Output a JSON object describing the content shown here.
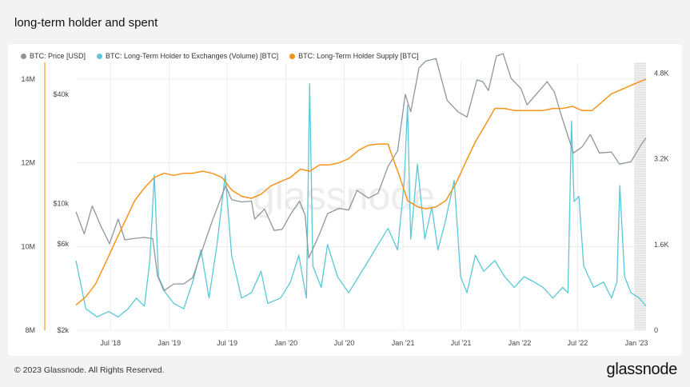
{
  "title": "long-term holder and spent",
  "footer": "© 2023 Glassnode. All Rights Reserved.",
  "brand": "glassnode",
  "watermark": "glassnode",
  "chart_data": {
    "type": "line",
    "title": "long-term holder and spent",
    "x_axis": {
      "type": "date",
      "range": [
        "2018-03-15",
        "2023-01-31"
      ],
      "tick_labels": [
        "Jul '18",
        "Jan '19",
        "Jul '19",
        "Jan '20",
        "Jul '20",
        "Jan '21",
        "Jul '21",
        "Jan '22",
        "Jul '22",
        "Jan '23"
      ],
      "tick_dates": [
        "2018-07-01",
        "2019-01-01",
        "2019-07-01",
        "2020-01-01",
        "2020-07-01",
        "2021-01-01",
        "2021-07-01",
        "2022-01-01",
        "2022-07-01",
        "2023-01-01"
      ]
    },
    "axes": {
      "supply": {
        "side": "left-outer",
        "scale": "linear",
        "range": [
          8000000,
          14400000
        ],
        "ticks": [
          8000000,
          10000000,
          12000000,
          14000000
        ],
        "tick_labels": [
          "8M",
          "10M",
          "12M",
          "14M"
        ]
      },
      "price": {
        "side": "left-inner",
        "scale": "log",
        "range": [
          2000,
          60000
        ],
        "ticks": [
          2000,
          6000,
          10000,
          40000
        ],
        "tick_labels": [
          "$2k",
          "$6k",
          "$10k",
          "$40k"
        ]
      },
      "volume": {
        "side": "right",
        "scale": "linear",
        "range": [
          0,
          5000
        ],
        "ticks": [
          0,
          1600,
          3200,
          4800
        ],
        "tick_labels": [
          "0",
          "1.6K",
          "3.2K",
          "4.8K"
        ]
      }
    },
    "legend_position": "top-left",
    "grid": true,
    "series": [
      {
        "name": "BTC: Price [USD]",
        "color": "#8f969b",
        "axis": "price",
        "points": [
          [
            "2018-03-15",
            9000
          ],
          [
            "2018-04-10",
            6800
          ],
          [
            "2018-05-05",
            9700
          ],
          [
            "2018-06-01",
            7500
          ],
          [
            "2018-06-28",
            6000
          ],
          [
            "2018-07-25",
            8200
          ],
          [
            "2018-08-15",
            6300
          ],
          [
            "2018-09-10",
            6400
          ],
          [
            "2018-10-15",
            6500
          ],
          [
            "2018-11-10",
            6400
          ],
          [
            "2018-11-25",
            4000
          ],
          [
            "2018-12-15",
            3300
          ],
          [
            "2019-01-15",
            3600
          ],
          [
            "2019-02-15",
            3600
          ],
          [
            "2019-03-15",
            3900
          ],
          [
            "2019-04-05",
            5000
          ],
          [
            "2019-05-15",
            8000
          ],
          [
            "2019-06-26",
            12500
          ],
          [
            "2019-07-15",
            10500
          ],
          [
            "2019-08-15",
            10200
          ],
          [
            "2019-09-15",
            10300
          ],
          [
            "2019-09-25",
            8200
          ],
          [
            "2019-10-26",
            9300
          ],
          [
            "2019-11-25",
            7100
          ],
          [
            "2019-12-20",
            7200
          ],
          [
            "2020-01-15",
            8700
          ],
          [
            "2020-02-12",
            10300
          ],
          [
            "2020-03-01",
            8600
          ],
          [
            "2020-03-12",
            5000
          ],
          [
            "2020-04-15",
            6800
          ],
          [
            "2020-05-10",
            8800
          ],
          [
            "2020-06-15",
            9400
          ],
          [
            "2020-07-15",
            9200
          ],
          [
            "2020-08-10",
            11800
          ],
          [
            "2020-09-15",
            10700
          ],
          [
            "2020-10-15",
            11400
          ],
          [
            "2020-11-15",
            16000
          ],
          [
            "2020-12-15",
            19500
          ],
          [
            "2021-01-08",
            40000
          ],
          [
            "2021-01-25",
            32000
          ],
          [
            "2021-02-20",
            56000
          ],
          [
            "2021-03-13",
            61000
          ],
          [
            "2021-04-14",
            63000
          ],
          [
            "2021-05-19",
            37000
          ],
          [
            "2021-06-22",
            32000
          ],
          [
            "2021-07-20",
            30000
          ],
          [
            "2021-08-20",
            48000
          ],
          [
            "2021-09-07",
            47000
          ],
          [
            "2021-09-25",
            42000
          ],
          [
            "2021-10-20",
            65000
          ],
          [
            "2021-11-10",
            67000
          ],
          [
            "2021-12-05",
            49000
          ],
          [
            "2022-01-05",
            43000
          ],
          [
            "2022-01-24",
            35000
          ],
          [
            "2022-03-28",
            47000
          ],
          [
            "2022-04-20",
            41000
          ],
          [
            "2022-05-10",
            31000
          ],
          [
            "2022-06-18",
            19000
          ],
          [
            "2022-07-15",
            20500
          ],
          [
            "2022-08-10",
            24000
          ],
          [
            "2022-09-07",
            19000
          ],
          [
            "2022-10-15",
            19200
          ],
          [
            "2022-11-09",
            16500
          ],
          [
            "2022-12-15",
            17000
          ],
          [
            "2023-01-15",
            21000
          ],
          [
            "2023-01-31",
            23000
          ]
        ]
      },
      {
        "name": "BTC: Long-Term Holder to Exchanges (Volume) [BTC]",
        "color": "#5ac8d6",
        "axis": "volume",
        "points": [
          [
            "2018-03-15",
            1300
          ],
          [
            "2018-04-15",
            400
          ],
          [
            "2018-05-20",
            250
          ],
          [
            "2018-06-25",
            350
          ],
          [
            "2018-07-25",
            250
          ],
          [
            "2018-08-25",
            400
          ],
          [
            "2018-09-20",
            600
          ],
          [
            "2018-10-15",
            450
          ],
          [
            "2018-11-01",
            1300
          ],
          [
            "2018-11-15",
            2900
          ],
          [
            "2018-11-28",
            1000
          ],
          [
            "2018-12-20",
            700
          ],
          [
            "2019-01-15",
            500
          ],
          [
            "2019-02-15",
            400
          ],
          [
            "2019-03-15",
            900
          ],
          [
            "2019-04-10",
            1500
          ],
          [
            "2019-05-05",
            600
          ],
          [
            "2019-05-30",
            1600
          ],
          [
            "2019-06-25",
            2900
          ],
          [
            "2019-07-15",
            1400
          ],
          [
            "2019-08-15",
            600
          ],
          [
            "2019-09-15",
            700
          ],
          [
            "2019-10-15",
            1100
          ],
          [
            "2019-11-05",
            500
          ],
          [
            "2019-12-15",
            600
          ],
          [
            "2020-01-15",
            900
          ],
          [
            "2020-02-10",
            1400
          ],
          [
            "2020-03-05",
            600
          ],
          [
            "2020-03-15",
            4600
          ],
          [
            "2020-03-25",
            1200
          ],
          [
            "2020-04-20",
            800
          ],
          [
            "2020-05-10",
            1600
          ],
          [
            "2020-06-10",
            1000
          ],
          [
            "2020-07-15",
            700
          ],
          [
            "2020-08-15",
            1000
          ],
          [
            "2020-09-15",
            1300
          ],
          [
            "2020-10-15",
            1600
          ],
          [
            "2020-11-15",
            1900
          ],
          [
            "2020-12-15",
            1500
          ],
          [
            "2021-01-05",
            2800
          ],
          [
            "2021-01-15",
            4200
          ],
          [
            "2021-01-25",
            1700
          ],
          [
            "2021-02-15",
            3100
          ],
          [
            "2021-03-10",
            1700
          ],
          [
            "2021-04-01",
            2300
          ],
          [
            "2021-04-20",
            1500
          ],
          [
            "2021-05-12",
            2000
          ],
          [
            "2021-06-10",
            2800
          ],
          [
            "2021-06-30",
            1000
          ],
          [
            "2021-07-20",
            700
          ],
          [
            "2021-08-15",
            1400
          ],
          [
            "2021-09-10",
            1100
          ],
          [
            "2021-10-15",
            1300
          ],
          [
            "2021-11-15",
            1000
          ],
          [
            "2021-12-15",
            800
          ],
          [
            "2022-01-15",
            1000
          ],
          [
            "2022-02-15",
            900
          ],
          [
            "2022-03-15",
            800
          ],
          [
            "2022-04-15",
            600
          ],
          [
            "2022-05-15",
            800
          ],
          [
            "2022-06-01",
            700
          ],
          [
            "2022-06-12",
            3900
          ],
          [
            "2022-06-20",
            2400
          ],
          [
            "2022-07-05",
            2500
          ],
          [
            "2022-07-20",
            1200
          ],
          [
            "2022-08-20",
            800
          ],
          [
            "2022-09-20",
            900
          ],
          [
            "2022-10-15",
            600
          ],
          [
            "2022-11-01",
            900
          ],
          [
            "2022-11-10",
            2700
          ],
          [
            "2022-11-25",
            1000
          ],
          [
            "2022-12-15",
            700
          ],
          [
            "2023-01-10",
            600
          ],
          [
            "2023-01-31",
            450
          ]
        ]
      },
      {
        "name": "BTC: Long-Term Holder Supply [BTC]",
        "color": "#f7931a",
        "axis": "supply",
        "points": [
          [
            "2018-03-15",
            8600000
          ],
          [
            "2018-04-15",
            8800000
          ],
          [
            "2018-05-15",
            9100000
          ],
          [
            "2018-06-15",
            9600000
          ],
          [
            "2018-07-15",
            10100000
          ],
          [
            "2018-08-15",
            10600000
          ],
          [
            "2018-09-15",
            11100000
          ],
          [
            "2018-10-15",
            11400000
          ],
          [
            "2018-11-15",
            11650000
          ],
          [
            "2018-12-15",
            11750000
          ],
          [
            "2019-01-15",
            11700000
          ],
          [
            "2019-02-15",
            11750000
          ],
          [
            "2019-03-15",
            11750000
          ],
          [
            "2019-04-15",
            11800000
          ],
          [
            "2019-05-15",
            11750000
          ],
          [
            "2019-06-15",
            11650000
          ],
          [
            "2019-07-15",
            11350000
          ],
          [
            "2019-08-15",
            11200000
          ],
          [
            "2019-09-15",
            11150000
          ],
          [
            "2019-10-15",
            11250000
          ],
          [
            "2019-11-15",
            11450000
          ],
          [
            "2019-12-15",
            11550000
          ],
          [
            "2020-01-15",
            11650000
          ],
          [
            "2020-02-15",
            11850000
          ],
          [
            "2020-03-15",
            11800000
          ],
          [
            "2020-04-15",
            11950000
          ],
          [
            "2020-05-15",
            11950000
          ],
          [
            "2020-06-15",
            12000000
          ],
          [
            "2020-07-15",
            12100000
          ],
          [
            "2020-08-15",
            12300000
          ],
          [
            "2020-09-15",
            12420000
          ],
          [
            "2020-10-15",
            12450000
          ],
          [
            "2020-11-15",
            12450000
          ],
          [
            "2020-12-01",
            12100000
          ],
          [
            "2020-12-20",
            11700000
          ],
          [
            "2021-01-15",
            11100000
          ],
          [
            "2021-02-15",
            10950000
          ],
          [
            "2021-03-15",
            10900000
          ],
          [
            "2021-04-15",
            10950000
          ],
          [
            "2021-05-15",
            11100000
          ],
          [
            "2021-06-15",
            11500000
          ],
          [
            "2021-07-15",
            12000000
          ],
          [
            "2021-08-15",
            12500000
          ],
          [
            "2021-09-15",
            12900000
          ],
          [
            "2021-10-15",
            13300000
          ],
          [
            "2021-11-15",
            13300000
          ],
          [
            "2021-12-15",
            13250000
          ],
          [
            "2022-01-15",
            13250000
          ],
          [
            "2022-02-15",
            13250000
          ],
          [
            "2022-03-15",
            13250000
          ],
          [
            "2022-04-15",
            13300000
          ],
          [
            "2022-05-15",
            13300000
          ],
          [
            "2022-06-15",
            13350000
          ],
          [
            "2022-07-15",
            13250000
          ],
          [
            "2022-08-15",
            13250000
          ],
          [
            "2022-09-15",
            13450000
          ],
          [
            "2022-10-15",
            13650000
          ],
          [
            "2022-11-15",
            13750000
          ],
          [
            "2022-12-15",
            13850000
          ],
          [
            "2023-01-15",
            13950000
          ],
          [
            "2023-01-31",
            14000000
          ]
        ]
      }
    ]
  }
}
